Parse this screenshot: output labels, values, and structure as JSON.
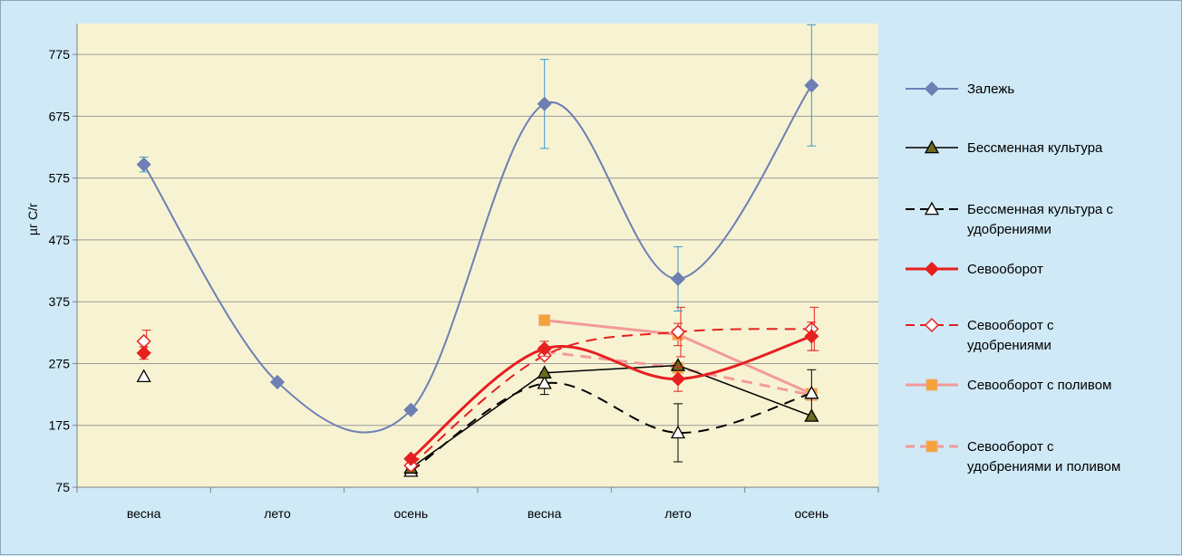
{
  "chart_data": {
    "type": "line",
    "title": "",
    "xlabel": "",
    "ylabel": "µг С/г",
    "ylim": [
      75,
      825
    ],
    "yticks": [
      75,
      175,
      275,
      375,
      475,
      575,
      675,
      775
    ],
    "categories": [
      "весна",
      "лето",
      "осень",
      "весна",
      "лето",
      "осень"
    ],
    "grid": true,
    "legend_position": "right",
    "plot_background": "#f7f3d2",
    "series": [
      {
        "name": "Залежь",
        "color": "#6d7fb5",
        "marker": "diamond",
        "filled": true,
        "dash": false,
        "width": 2,
        "smooth": true,
        "values": [
          597,
          245,
          200,
          695,
          412,
          725
        ],
        "errors": [
          12,
          null,
          null,
          72,
          52,
          98
        ]
      },
      {
        "name": "Бессменная культура",
        "color": "#000000",
        "marker": "triangle",
        "filled": true,
        "dash": false,
        "width": 1.5,
        "smooth": false,
        "values": [
          null,
          null,
          106,
          260,
          272,
          190
        ],
        "errors": [
          null,
          null,
          null,
          null,
          null,
          null
        ]
      },
      {
        "name": "Бессменная культура с удобрениями",
        "color": "#000000",
        "marker": "triangle",
        "filled": false,
        "dash": true,
        "width": 2,
        "smooth": true,
        "values": [
          254,
          null,
          101,
          243,
          163,
          227
        ],
        "errors": [
          null,
          null,
          null,
          18,
          47,
          38
        ]
      },
      {
        "name": "Севооборот",
        "color": "#e62020",
        "marker": "diamond",
        "filled": true,
        "dash": false,
        "width": 3,
        "smooth": true,
        "values": [
          292,
          null,
          121,
          299,
          250,
          319
        ],
        "errors": [
          10,
          null,
          null,
          12,
          20,
          23
        ]
      },
      {
        "name": "Севооборот с удобрениями",
        "color": "#e62020",
        "marker": "diamond",
        "filled": false,
        "dash": true,
        "width": 2,
        "smooth": true,
        "values": [
          311,
          null,
          110,
          288,
          326,
          331
        ],
        "errors": [
          18,
          null,
          null,
          null,
          40,
          35
        ]
      },
      {
        "name": "Севооборот с поливом",
        "color": "#f29a9a",
        "marker": "square",
        "filled": true,
        "dash": false,
        "width": 3,
        "smooth": false,
        "values": [
          null,
          null,
          null,
          345,
          322,
          226
        ],
        "errors": [
          null,
          null,
          null,
          null,
          18,
          null
        ]
      },
      {
        "name": "Севооборот с удобрениями и поливом",
        "color": "#f29a9a",
        "marker": "square",
        "filled": true,
        "dash": true,
        "width": 3,
        "smooth": false,
        "values": [
          null,
          null,
          null,
          294,
          268,
          224
        ],
        "errors": [
          null,
          null,
          null,
          null,
          null,
          null
        ]
      }
    ]
  }
}
